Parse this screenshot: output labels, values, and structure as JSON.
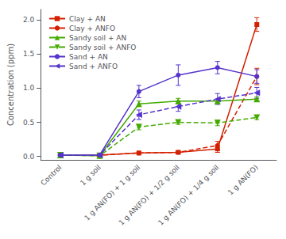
{
  "chart_data": {
    "type": "line",
    "categories": [
      "Control",
      "1 g soil",
      "1 g AN(FO) + 1 g soil",
      "1 g AN(FO) + 1/2 g soil",
      "1 g AN(FO) + 1/4 g soil",
      "1 g AN(FO)"
    ],
    "ylabel": "Concentration (ppm)",
    "ylim": [
      -0.05,
      2.15
    ],
    "yticks": [
      {
        "value": 0.0,
        "label": "0.0"
      },
      0.5,
      {
        "value": 1.0,
        "label": "1.0"
      },
      1.5,
      {
        "value": 2.0,
        "label": "2.0"
      }
    ],
    "grid": false,
    "legend": "upper left",
    "series": [
      {
        "name": "Clay + AN",
        "color": "#d42000",
        "line_style": "solid",
        "marker": "square",
        "values": [
          0.02,
          0.02,
          0.05,
          0.06,
          0.11,
          1.93
        ],
        "errors": [
          0.01,
          0.01,
          0.015,
          0.02,
          0.05,
          0.1
        ]
      },
      {
        "name": "Clay + ANFO",
        "color": "#d42000",
        "line_style": "dashed",
        "marker": "circle",
        "values": [
          0.02,
          0.02,
          0.05,
          0.06,
          0.16,
          1.17
        ],
        "errors": [
          0.01,
          0.01,
          0.015,
          0.02,
          0.06,
          0.12
        ]
      },
      {
        "name": "Sandy soil + AN",
        "color": "#44aa00",
        "line_style": "solid",
        "marker": "triangle-up",
        "values": [
          0.02,
          0.01,
          0.77,
          0.81,
          0.81,
          0.84
        ],
        "errors": [
          0.01,
          0.01,
          0.04,
          0.04,
          0.03,
          0.03
        ]
      },
      {
        "name": "Sandy soil + ANFO",
        "color": "#44aa00",
        "line_style": "dashed",
        "marker": "triangle-down",
        "values": [
          0.02,
          0.01,
          0.43,
          0.5,
          0.49,
          0.57
        ],
        "errors": [
          0.01,
          0.01,
          0.04,
          0.03,
          0.04,
          0.03
        ]
      },
      {
        "name": "Sand + AN",
        "color": "#5533cc",
        "line_style": "solid",
        "marker": "circle",
        "values": [
          0.02,
          0.02,
          0.95,
          1.19,
          1.3,
          1.17
        ],
        "errors": [
          0.01,
          0.01,
          0.09,
          0.15,
          0.09,
          0.1
        ]
      },
      {
        "name": "Sand + ANFO",
        "color": "#5533cc",
        "line_style": "dashed",
        "marker": "triangle-left",
        "values": [
          0.02,
          0.02,
          0.61,
          0.73,
          0.84,
          0.93
        ],
        "errors": [
          0.01,
          0.01,
          0.07,
          0.07,
          0.08,
          0.08
        ]
      }
    ]
  }
}
